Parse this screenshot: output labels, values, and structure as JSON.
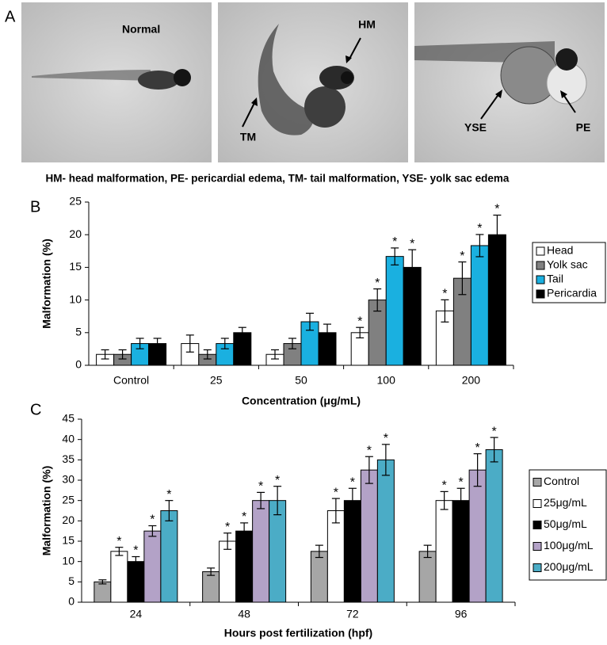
{
  "figure_a": {
    "panel_label": "A",
    "panels": [
      {
        "labels": [
          "Normal"
        ]
      },
      {
        "labels": [
          "HM",
          "TM"
        ]
      },
      {
        "labels": [
          "YSE",
          "PE"
        ]
      }
    ],
    "caption": "HM- head malformation,  PE- pericardial edema,  TM- tail malformation,  YSE- yolk sac edema"
  },
  "chart_data": [
    {
      "type": "bar",
      "panel_label": "B",
      "y_label": "Malformation (%)",
      "x_label": "Concentration (μg/mL)",
      "categories": [
        "Control",
        "25",
        "50",
        "100",
        "200"
      ],
      "ylim": [
        0,
        25
      ],
      "yticks": [
        0,
        5,
        10,
        15,
        20,
        25
      ],
      "series": [
        {
          "name": "Head",
          "color": "#ffffff",
          "values": [
            1.67,
            3.33,
            1.67,
            5,
            8.33
          ],
          "errors": [
            0.7,
            1.3,
            0.7,
            0.8,
            1.7
          ],
          "significance": [
            null,
            null,
            null,
            "*",
            "*"
          ]
        },
        {
          "name": "Yolk sac",
          "color": "#808080",
          "values": [
            1.67,
            1.67,
            3.33,
            10,
            13.33
          ],
          "errors": [
            0.7,
            0.7,
            0.8,
            1.7,
            2.5
          ],
          "significance": [
            null,
            null,
            null,
            "*",
            "*"
          ]
        },
        {
          "name": "Tail",
          "color": "#1ab0e0",
          "values": [
            3.33,
            3.33,
            6.67,
            16.67,
            18.33
          ],
          "errors": [
            0.8,
            0.8,
            1.3,
            1.3,
            1.7
          ],
          "significance": [
            null,
            null,
            null,
            "*",
            "*"
          ]
        },
        {
          "name": "Pericardia",
          "color": "#000000",
          "values": [
            3.33,
            5,
            5,
            15,
            20
          ],
          "errors": [
            0.8,
            0.8,
            1.3,
            2.7,
            3
          ],
          "significance": [
            null,
            null,
            null,
            "*",
            "*"
          ]
        }
      ]
    },
    {
      "type": "bar",
      "panel_label": "C",
      "y_label": "Malformation (%)",
      "x_label": "Hours post fertilization (hpf)",
      "categories": [
        "24",
        "48",
        "72",
        "96"
      ],
      "ylim": [
        0,
        45
      ],
      "yticks": [
        0,
        5,
        10,
        15,
        20,
        25,
        30,
        35,
        40,
        45
      ],
      "series": [
        {
          "name": "Control",
          "color": "#a6a6a6",
          "values": [
            5,
            7.5,
            12.5,
            12.5
          ],
          "errors": [
            0.5,
            0.9,
            1.5,
            1.5
          ],
          "significance": [
            null,
            null,
            null,
            null
          ]
        },
        {
          "name": "25μg/mL",
          "color": "#ffffff",
          "values": [
            12.5,
            15,
            22.5,
            25
          ],
          "errors": [
            1,
            2,
            3,
            2.2
          ],
          "significance": [
            "*",
            "*",
            "*",
            "*"
          ]
        },
        {
          "name": "50μg/mL",
          "color": "#000000",
          "values": [
            10,
            17.5,
            25,
            25
          ],
          "errors": [
            1.2,
            2,
            3,
            3
          ],
          "significance": [
            "*",
            "*",
            "*",
            "*"
          ]
        },
        {
          "name": "100μg/mL",
          "color": "#b3a2c7",
          "values": [
            17.5,
            25,
            32.5,
            32.5
          ],
          "errors": [
            1.3,
            2,
            3.3,
            4
          ],
          "significance": [
            "*",
            "*",
            "*",
            "*"
          ]
        },
        {
          "name": "200μg/mL",
          "color": "#4bacc6",
          "values": [
            22.5,
            25,
            35,
            37.5
          ],
          "errors": [
            2.5,
            3.5,
            3.8,
            3
          ],
          "significance": [
            "*",
            "*",
            "*",
            "*"
          ]
        }
      ]
    }
  ]
}
